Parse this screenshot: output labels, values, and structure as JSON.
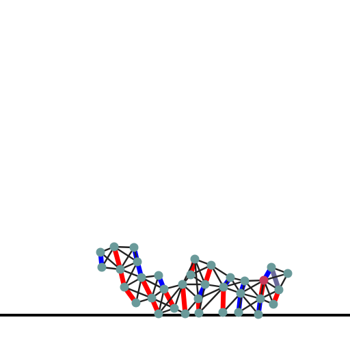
{
  "scene": {
    "type": "soft-body physics simulation",
    "colors": {
      "background": "#ffffff",
      "ground": "#000000",
      "node": "#6a9a9a",
      "node_activated": "#c8395a",
      "beam": "#222222",
      "muscle_contract": "#ff0000",
      "muscle_expand": "#0000ff",
      "muscle_neutral": "#6a6a9a"
    }
  }
}
